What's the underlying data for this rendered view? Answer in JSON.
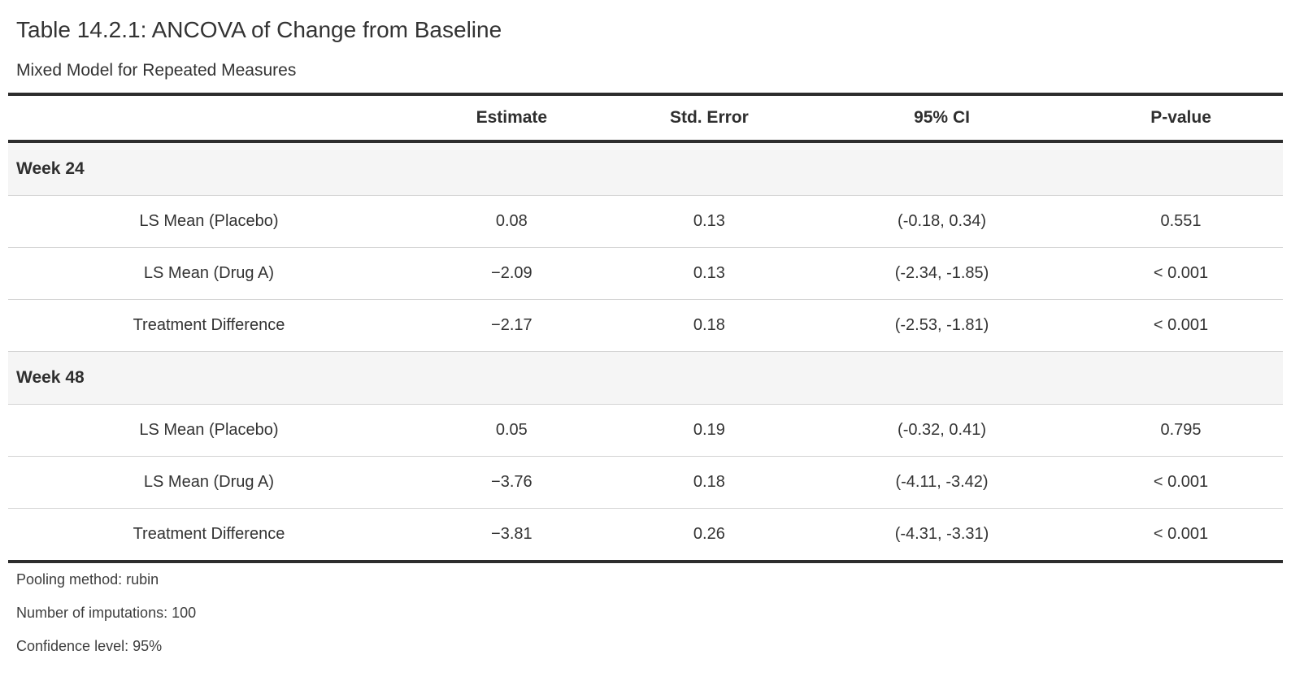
{
  "table": {
    "title": "Table 14.2.1: ANCOVA of Change from Baseline",
    "subtitle": "Mixed Model for Repeated Measures",
    "columns": [
      "",
      "Estimate",
      "Std. Error",
      "95% CI",
      "P-value"
    ],
    "groups": [
      {
        "label": "Week 24",
        "rows": [
          {
            "label": "LS Mean (Placebo)",
            "estimate": "0.08",
            "std_error": "0.13",
            "ci": "(-0.18, 0.34)",
            "p_value": "0.551"
          },
          {
            "label": "LS Mean (Drug A)",
            "estimate": "−2.09",
            "std_error": "0.13",
            "ci": "(-2.34, -1.85)",
            "p_value": "< 0.001"
          },
          {
            "label": "Treatment Difference",
            "estimate": "−2.17",
            "std_error": "0.18",
            "ci": "(-2.53, -1.81)",
            "p_value": "< 0.001"
          }
        ]
      },
      {
        "label": "Week 48",
        "rows": [
          {
            "label": "LS Mean (Placebo)",
            "estimate": "0.05",
            "std_error": "0.19",
            "ci": "(-0.32, 0.41)",
            "p_value": "0.795"
          },
          {
            "label": "LS Mean (Drug A)",
            "estimate": "−3.76",
            "std_error": "0.18",
            "ci": "(-4.11, -3.42)",
            "p_value": "< 0.001"
          },
          {
            "label": "Treatment Difference",
            "estimate": "−3.81",
            "std_error": "0.26",
            "ci": "(-4.31, -3.31)",
            "p_value": "< 0.001"
          }
        ]
      }
    ],
    "footnotes": [
      "Pooling method: rubin",
      "Number of imputations: 100",
      "Confidence level: 95%"
    ],
    "colors": {
      "thick_border": "#2d2d2d",
      "thin_border": "#d4d4d4",
      "group_bg": "#f5f5f5",
      "text": "#333333"
    }
  }
}
